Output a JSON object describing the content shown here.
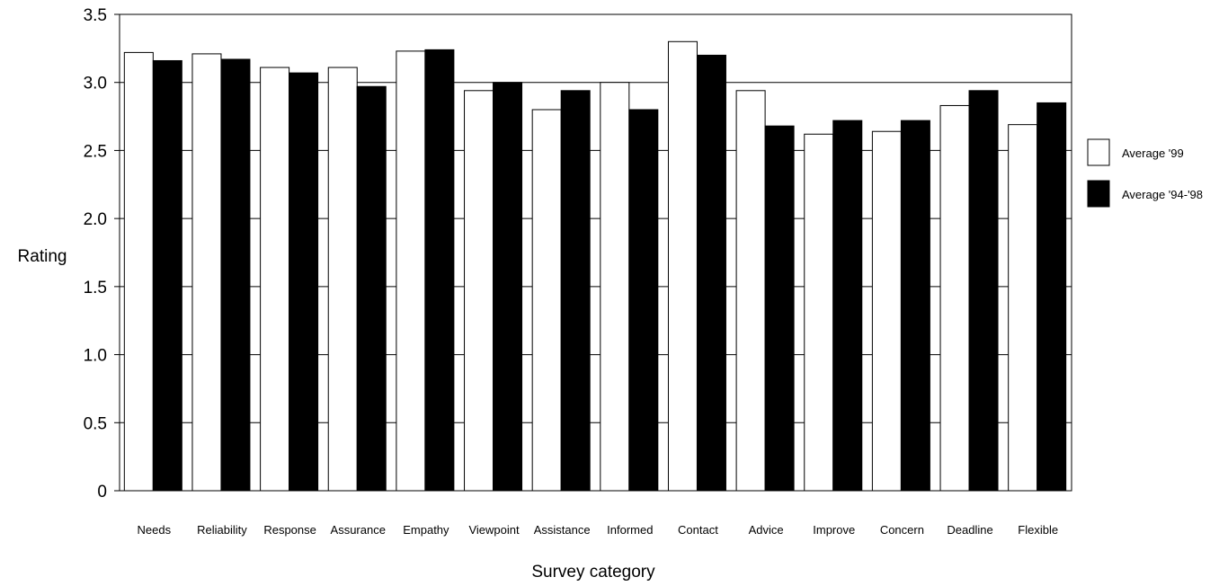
{
  "chart_data": {
    "type": "bar",
    "title": "",
    "xlabel": "Survey category",
    "ylabel": "Rating",
    "ylim": [
      0,
      3.5
    ],
    "yticks": [
      "0",
      "0.5",
      "1.0",
      "1.5",
      "2.0",
      "2.5",
      "3.0",
      "3.5"
    ],
    "ytick_values": [
      0,
      0.5,
      1.0,
      1.5,
      2.0,
      2.5,
      3.0,
      3.5
    ],
    "grid": "horizontal",
    "legend_position": "right",
    "categories": [
      "Needs",
      "Reliability",
      "Response",
      "Assurance",
      "Empathy",
      "Viewpoint",
      "Assistance",
      "Informed",
      "Contact",
      "Advice",
      "Improve",
      "Concern",
      "Deadline",
      "Flexible"
    ],
    "series": [
      {
        "name": "Average '99",
        "color": "#ffffff",
        "values": [
          3.22,
          3.21,
          3.11,
          3.11,
          3.23,
          2.94,
          2.8,
          3.0,
          3.3,
          2.94,
          2.62,
          2.64,
          2.83,
          2.69
        ]
      },
      {
        "name": "Average '94-'98",
        "color": "#000000",
        "values": [
          3.16,
          3.17,
          3.07,
          2.97,
          3.24,
          3.0,
          2.94,
          2.8,
          3.2,
          2.68,
          2.72,
          2.72,
          2.94,
          2.85
        ]
      }
    ]
  }
}
